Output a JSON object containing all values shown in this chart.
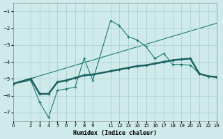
{
  "xlabel": "Humidex (Indice chaleur)",
  "bg_color": "#ceeaea",
  "grid_color": "#aacccc",
  "line_color_thin": "#1a7a6a",
  "line_color_thick": "#1a6060",
  "xlim": [
    0,
    23
  ],
  "ylim": [
    -7.5,
    -0.5
  ],
  "yticks": [
    -7,
    -6,
    -5,
    -4,
    -3,
    -2,
    -1
  ],
  "xticks": [
    0,
    2,
    3,
    4,
    5,
    6,
    7,
    8,
    9,
    11,
    12,
    13,
    14,
    15,
    16,
    17,
    18,
    19,
    20,
    21,
    22,
    23
  ],
  "series1_x": [
    0,
    2,
    3,
    4,
    5,
    6,
    7,
    8,
    9,
    11,
    12,
    13,
    14,
    15,
    16,
    17,
    18,
    19,
    20,
    21,
    22,
    23
  ],
  "series1_y": [
    -5.3,
    -5.1,
    -6.4,
    -7.3,
    -5.7,
    -5.6,
    -5.5,
    -3.8,
    -5.1,
    -1.55,
    -1.85,
    -2.5,
    -2.7,
    -3.1,
    -3.8,
    -3.5,
    -4.15,
    -4.15,
    -4.2,
    -4.7,
    -4.85,
    -4.9
  ],
  "series2_x": [
    0,
    2,
    3,
    4,
    5,
    6,
    7,
    8,
    9,
    11,
    12,
    13,
    14,
    15,
    16,
    17,
    18,
    19,
    20,
    21,
    22,
    23
  ],
  "series2_y": [
    -5.3,
    -5.0,
    -5.9,
    -5.9,
    -5.2,
    -5.1,
    -4.95,
    -4.8,
    -4.75,
    -4.55,
    -4.45,
    -4.35,
    -4.25,
    -4.2,
    -4.1,
    -4.0,
    -3.9,
    -3.85,
    -3.8,
    -4.7,
    -4.85,
    -4.9
  ],
  "series3_x": [
    0,
    23
  ],
  "series3_y": [
    -5.3,
    -1.7
  ]
}
